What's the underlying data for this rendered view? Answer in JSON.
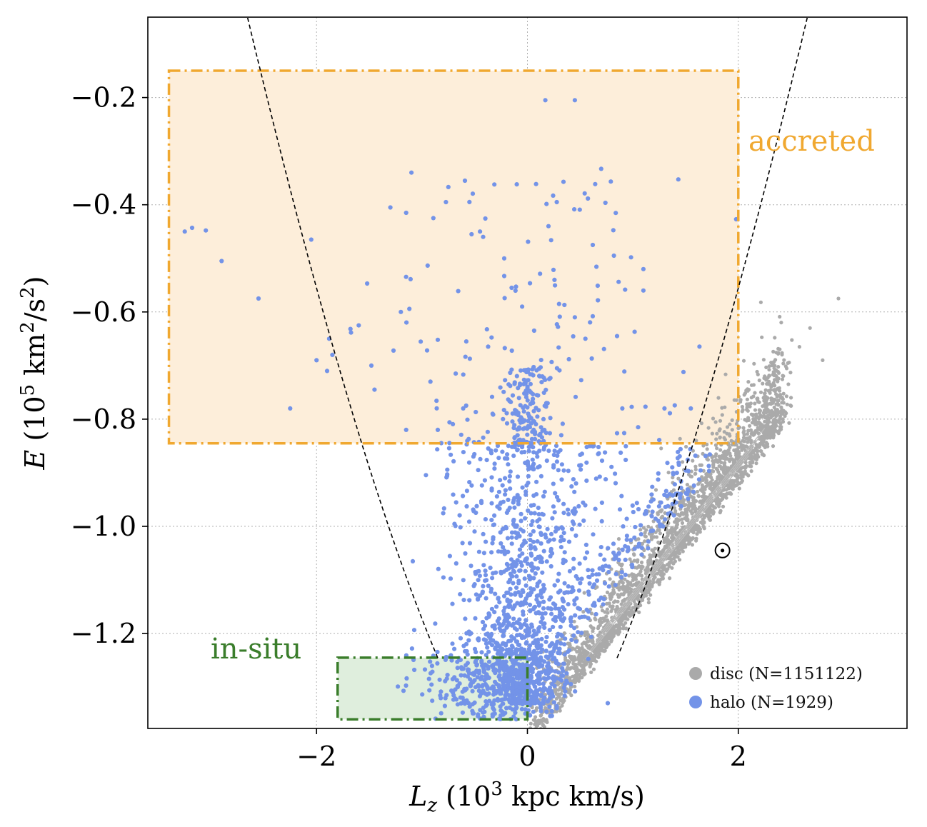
{
  "chart_data": {
    "type": "scatter",
    "xlabel_var": "L",
    "xlabel_sub": "z",
    "xlabel_rest_pre": " (10",
    "xlabel_sup": "3",
    "xlabel_rest_post": " kpc km/s)",
    "ylabel_var": "E",
    "ylabel_rest_pre": " (10",
    "ylabel_sup1": "5",
    "ylabel_mid": " km",
    "ylabel_sup2": "2",
    "ylabel_rest_post": "/s",
    "ylabel_sup3": "2",
    "ylabel_close": ")",
    "xlim": [
      -3.6,
      3.6
    ],
    "ylim": [
      -1.377,
      -0.05
    ],
    "xticks": [
      -2,
      0,
      2
    ],
    "xtick_labels": [
      "−2",
      "0",
      "2"
    ],
    "yticks": [
      -1.2,
      -1.0,
      -0.8,
      -0.6,
      -0.4,
      -0.2
    ],
    "ytick_labels": [
      "−1.2",
      "−1.0",
      "−0.8",
      "−0.6",
      "−0.4",
      "−0.2"
    ],
    "grid": true,
    "legend_position": "lower-right",
    "series": [
      {
        "name": "disc (N=1151122)",
        "color": "#aaaaaa"
      },
      {
        "name": "halo (N=1929)",
        "color": "#7393e8"
      }
    ],
    "regions": [
      {
        "label": "accreted",
        "color": "#f0a830",
        "fill": "#fdeeda",
        "x": [
          -3.4,
          2.0
        ],
        "y": [
          -0.845,
          -0.15
        ]
      },
      {
        "label": "in-situ",
        "color": "#3a7d2b",
        "fill": "#dfeedd",
        "x": [
          -1.8,
          0.0
        ],
        "y": [
          -1.36,
          -1.245
        ]
      }
    ],
    "sun": {
      "x": 1.85,
      "y": -1.045
    },
    "boundary": {
      "style": "dashed",
      "color": "#000000"
    }
  }
}
